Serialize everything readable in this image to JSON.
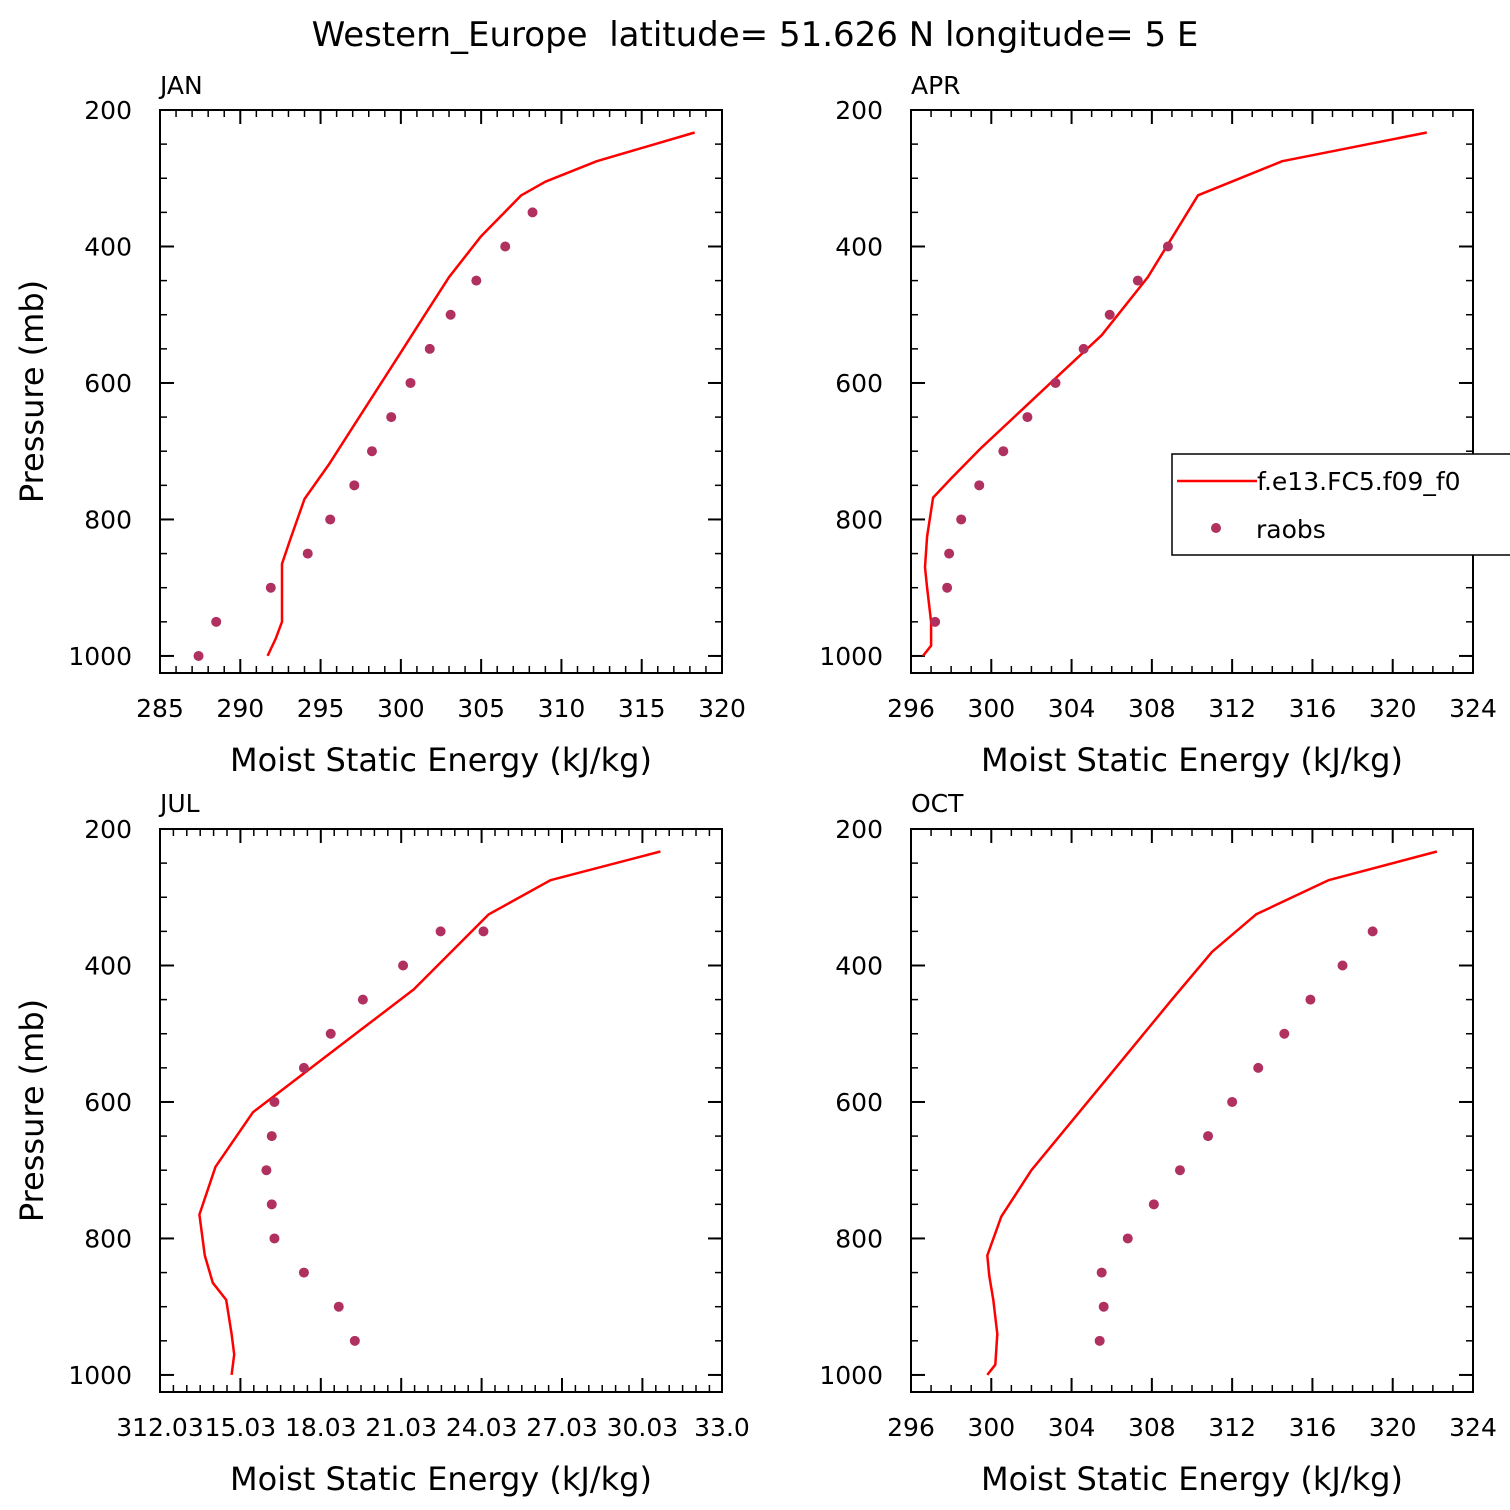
{
  "figure": {
    "title": "Western_Europe  latitude= 51.626 N longitude= 5 E",
    "colors": {
      "model": "#ff0000",
      "obs": "#b03060",
      "axes": "#000000"
    },
    "legend": {
      "placement": "right side of APR panel",
      "model_label": "f.e13.FC5.f09_f0",
      "obs_label": "raobs"
    }
  },
  "chart_data": [
    {
      "type": "line",
      "panel": "JAN",
      "xlabel": "Moist Static Energy (kJ/kg)",
      "ylabel": "Pressure (mb)",
      "xlim": [
        285,
        320
      ],
      "ylim": [
        1025,
        200
      ],
      "xticks": [
        "285",
        "290",
        "295",
        "300",
        "305",
        "310",
        "315",
        "320"
      ],
      "xtick_values": [
        285,
        290,
        295,
        300,
        305,
        310,
        315,
        320
      ],
      "yticks": [
        "200",
        "400",
        "600",
        "800",
        "1000"
      ],
      "yminor": 50,
      "xminor": 1,
      "series": [
        {
          "name": "f.e13.FC5.f09_f0",
          "kind": "line",
          "x": [
            291.7,
            292.2,
            292.6,
            292.6,
            292.6,
            293.1,
            294.0,
            295.5,
            297.0,
            298.5,
            300.0,
            301.5,
            303.0,
            305.0,
            307.5,
            309.0,
            312.2,
            318.3
          ],
          "y": [
            1000,
            975,
            950,
            900,
            865,
            830,
            770,
            720,
            665,
            610,
            555,
            500,
            445,
            385,
            325,
            305,
            275,
            233
          ]
        },
        {
          "name": "raobs",
          "kind": "points",
          "x": [
            287.4,
            288.5,
            291.9,
            294.2,
            295.6,
            297.1,
            298.2,
            299.4,
            300.6,
            301.8,
            303.1,
            304.7,
            306.5,
            308.2
          ],
          "y": [
            1000,
            950,
            900,
            850,
            800,
            750,
            700,
            650,
            600,
            550,
            500,
            450,
            400,
            350
          ]
        }
      ]
    },
    {
      "type": "line",
      "panel": "APR",
      "xlabel": "Moist Static Energy (kJ/kg)",
      "ylabel": "",
      "xlim": [
        296,
        324
      ],
      "ylim": [
        1025,
        200
      ],
      "xticks": [
        "296",
        "300",
        "304",
        "308",
        "312",
        "316",
        "320",
        "324"
      ],
      "xtick_values": [
        296,
        300,
        304,
        308,
        312,
        316,
        320,
        324
      ],
      "yticks": [
        "200",
        "400",
        "600",
        "800",
        "1000"
      ],
      "yminor": 50,
      "xminor": 1,
      "series": [
        {
          "name": "f.e13.FC5.f09_f0",
          "kind": "line",
          "x": [
            296.6,
            297.0,
            297.0,
            296.8,
            296.7,
            296.8,
            297.1,
            298.0,
            299.5,
            301.5,
            303.5,
            305.5,
            307.8,
            310.3,
            314.5,
            321.7
          ],
          "y": [
            1000,
            985,
            950,
            900,
            870,
            825,
            768,
            740,
            695,
            640,
            585,
            530,
            445,
            325,
            275,
            233
          ]
        },
        {
          "name": "raobs",
          "kind": "points",
          "x": [
            297.2,
            297.8,
            297.9,
            298.5,
            299.4,
            300.6,
            301.8,
            303.2,
            304.6,
            305.9,
            307.3,
            308.8
          ],
          "y": [
            950,
            900,
            850,
            800,
            750,
            700,
            650,
            600,
            550,
            500,
            450,
            400
          ]
        }
      ]
    },
    {
      "type": "line",
      "panel": "JUL",
      "xlabel": "Moist Static Energy (kJ/kg)",
      "ylabel": "Pressure (mb)",
      "xlim": [
        312.03,
        333.0
      ],
      "ylim": [
        1025,
        200
      ],
      "xticks": [
        "312.03",
        "15.03",
        "18.03",
        "21.03",
        "24.03",
        "27.03",
        "30.03",
        "33.0"
      ],
      "xtick_values": [
        312.03,
        315.03,
        318.03,
        321.03,
        324.03,
        327.03,
        330.03,
        333.0
      ],
      "yticks": [
        "200",
        "400",
        "600",
        "800",
        "1000"
      ],
      "yminor": 50,
      "xminor": 0.5,
      "series": [
        {
          "name": "f.e13.FC5.f09_f0",
          "kind": "line",
          "x": [
            314.7,
            314.8,
            314.7,
            314.5,
            314.0,
            313.7,
            313.5,
            314.1,
            315.5,
            317.5,
            319.5,
            321.5,
            324.3,
            326.6,
            330.7
          ],
          "y": [
            1000,
            970,
            940,
            890,
            865,
            825,
            765,
            695,
            615,
            555,
            495,
            435,
            325,
            275,
            233
          ]
        },
        {
          "name": "raobs",
          "kind": "points",
          "x": [
            319.3,
            318.7,
            317.4,
            316.3,
            316.2,
            316.0,
            316.2,
            316.3,
            317.4,
            318.4,
            319.6,
            321.1,
            322.5,
            324.1
          ],
          "y": [
            950,
            900,
            850,
            800,
            750,
            700,
            650,
            600,
            550,
            500,
            450,
            400,
            350,
            350
          ]
        }
      ]
    },
    {
      "type": "line",
      "panel": "OCT",
      "xlabel": "Moist Static Energy (kJ/kg)",
      "ylabel": "",
      "xlim": [
        296,
        324
      ],
      "ylim": [
        1025,
        200
      ],
      "xticks": [
        "296",
        "300",
        "304",
        "308",
        "312",
        "316",
        "320",
        "324"
      ],
      "xtick_values": [
        296,
        300,
        304,
        308,
        312,
        316,
        320,
        324
      ],
      "yticks": [
        "200",
        "400",
        "600",
        "800",
        "1000"
      ],
      "yminor": 50,
      "xminor": 1,
      "series": [
        {
          "name": "f.e13.FC5.f09_f0",
          "kind": "line",
          "x": [
            299.8,
            300.2,
            300.3,
            300.1,
            299.9,
            299.8,
            300.5,
            302.0,
            305.5,
            309.0,
            311.0,
            313.2,
            316.8,
            322.2
          ],
          "y": [
            1000,
            985,
            940,
            890,
            855,
            825,
            768,
            700,
            575,
            450,
            380,
            325,
            275,
            233
          ]
        },
        {
          "name": "raobs",
          "kind": "points",
          "x": [
            305.4,
            305.6,
            305.5,
            306.8,
            308.1,
            309.4,
            310.8,
            312.0,
            313.3,
            314.6,
            315.9,
            317.5,
            319.0
          ],
          "y": [
            950,
            900,
            850,
            800,
            750,
            700,
            650,
            600,
            550,
            500,
            450,
            400,
            350
          ]
        }
      ]
    }
  ]
}
